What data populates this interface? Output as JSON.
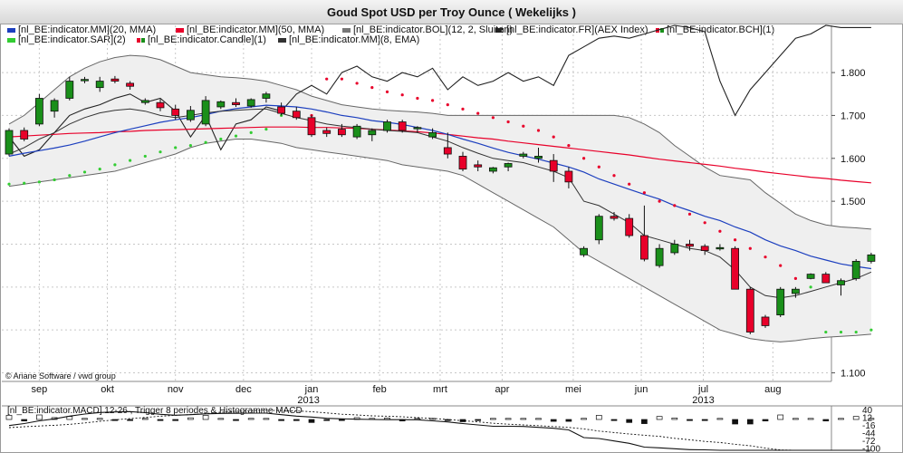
{
  "title": "Goud Spot USD per Troy Ounce  ( Wekelijks )",
  "legend": [
    {
      "label": "[nl_BE:indicator.MM](20, MMA)",
      "color": "#1c3fbf"
    },
    {
      "label": "[nl_BE:indicator.MM](50, MMA)",
      "color": "#e8002a"
    },
    {
      "label": "[nl_BE:indicator.BOL](12, 2, Sluiten)",
      "color": "#777777"
    },
    {
      "label": "[nl_BE:indicator.FR](AEX Index)",
      "color": "#222222"
    },
    {
      "label": "[nl_BE:indicator.BCH](1)",
      "color": "#e8002a",
      "color2": "#1a8f1a"
    },
    {
      "label": "[nl_BE:indicator.SAR](2)",
      "color": "#33cc33"
    },
    {
      "label": "[nl_BE:indicator.Candle](1)",
      "color": "#e8002a",
      "color2": "#1a8f1a"
    },
    {
      "label": "[nl_BE:indicator.MM](8, EMA)",
      "color": "#333333"
    }
  ],
  "copyright": "© Ariane Software / vwd group",
  "macd_label": "[nl_BE:indicator.MACD] 12-26 , Trigger 8 periodes & Histogramme MACD",
  "macd_ticks": [
    "40",
    "12",
    "-16",
    "-44",
    "-72",
    "-100"
  ],
  "colors": {
    "up": "#1a8f1a",
    "down": "#e8002a",
    "ma20": "#1c3fbf",
    "ma50": "#e8002a",
    "band": "#efefef",
    "sar": "#33cc33",
    "sar_above": "#e8002a"
  },
  "chart_data": {
    "type": "candlestick",
    "y_ticks": [
      1100,
      1200,
      1300,
      1400,
      1500,
      1600,
      1700,
      1800
    ],
    "y_tick_labels": [
      "1.100",
      "1.200",
      "1.300",
      "1.400",
      "1.500",
      "1.600",
      "1.700",
      "1.800"
    ],
    "ylim": [
      1080,
      1910
    ],
    "x_labels": [
      {
        "label": "sep",
        "index": 2
      },
      {
        "label": "okt",
        "index": 6.5
      },
      {
        "label": "nov",
        "index": 11
      },
      {
        "label": "dec",
        "index": 15.5
      },
      {
        "label": "jan",
        "index": 20
      },
      {
        "label": "feb",
        "index": 24.5
      },
      {
        "label": "mrt",
        "index": 28.5
      },
      {
        "label": "apr",
        "index": 32.6
      },
      {
        "label": "mei",
        "index": 37.3
      },
      {
        "label": "jun",
        "index": 41.8
      },
      {
        "label": "jul",
        "index": 45.9
      },
      {
        "label": "aug",
        "index": 50.5
      }
    ],
    "year_labels": [
      {
        "label": "2013",
        "index": 19.8
      },
      {
        "label": "2013",
        "index": 45.9
      }
    ],
    "candles": [
      {
        "o": 1610,
        "h": 1670,
        "l": 1605,
        "c": 1665
      },
      {
        "o": 1665,
        "h": 1672,
        "l": 1640,
        "c": 1645
      },
      {
        "o": 1680,
        "h": 1750,
        "l": 1675,
        "c": 1740
      },
      {
        "o": 1710,
        "h": 1740,
        "l": 1695,
        "c": 1735
      },
      {
        "o": 1740,
        "h": 1790,
        "l": 1735,
        "c": 1780
      },
      {
        "o": 1782,
        "h": 1790,
        "l": 1775,
        "c": 1784
      },
      {
        "o": 1765,
        "h": 1790,
        "l": 1755,
        "c": 1780
      },
      {
        "o": 1785,
        "h": 1792,
        "l": 1775,
        "c": 1780
      },
      {
        "o": 1775,
        "h": 1780,
        "l": 1760,
        "c": 1768
      },
      {
        "o": 1730,
        "h": 1740,
        "l": 1725,
        "c": 1735
      },
      {
        "o": 1730,
        "h": 1738,
        "l": 1710,
        "c": 1718
      },
      {
        "o": 1715,
        "h": 1725,
        "l": 1690,
        "c": 1700
      },
      {
        "o": 1690,
        "h": 1722,
        "l": 1685,
        "c": 1712
      },
      {
        "o": 1680,
        "h": 1745,
        "l": 1675,
        "c": 1735
      },
      {
        "o": 1720,
        "h": 1735,
        "l": 1715,
        "c": 1732
      },
      {
        "o": 1730,
        "h": 1740,
        "l": 1720,
        "c": 1725
      },
      {
        "o": 1722,
        "h": 1740,
        "l": 1718,
        "c": 1737
      },
      {
        "o": 1740,
        "h": 1755,
        "l": 1730,
        "c": 1750
      },
      {
        "o": 1720,
        "h": 1730,
        "l": 1700,
        "c": 1705
      },
      {
        "o": 1710,
        "h": 1720,
        "l": 1690,
        "c": 1695
      },
      {
        "o": 1695,
        "h": 1700,
        "l": 1650,
        "c": 1655
      },
      {
        "o": 1665,
        "h": 1672,
        "l": 1650,
        "c": 1658
      },
      {
        "o": 1668,
        "h": 1680,
        "l": 1650,
        "c": 1655
      },
      {
        "o": 1650,
        "h": 1680,
        "l": 1645,
        "c": 1675
      },
      {
        "o": 1655,
        "h": 1670,
        "l": 1640,
        "c": 1665
      },
      {
        "o": 1665,
        "h": 1690,
        "l": 1660,
        "c": 1685
      },
      {
        "o": 1685,
        "h": 1690,
        "l": 1660,
        "c": 1665
      },
      {
        "o": 1670,
        "h": 1675,
        "l": 1660,
        "c": 1672
      },
      {
        "o": 1650,
        "h": 1670,
        "l": 1645,
        "c": 1660
      },
      {
        "o": 1625,
        "h": 1660,
        "l": 1600,
        "c": 1610
      },
      {
        "o": 1605,
        "h": 1615,
        "l": 1570,
        "c": 1575
      },
      {
        "o": 1585,
        "h": 1595,
        "l": 1570,
        "c": 1580
      },
      {
        "o": 1570,
        "h": 1580,
        "l": 1565,
        "c": 1578
      },
      {
        "o": 1580,
        "h": 1590,
        "l": 1570,
        "c": 1588
      },
      {
        "o": 1605,
        "h": 1615,
        "l": 1600,
        "c": 1610
      },
      {
        "o": 1600,
        "h": 1625,
        "l": 1590,
        "c": 1605
      },
      {
        "o": 1595,
        "h": 1610,
        "l": 1545,
        "c": 1570
      },
      {
        "o": 1570,
        "h": 1580,
        "l": 1530,
        "c": 1545
      },
      {
        "o": 1375,
        "h": 1395,
        "l": 1370,
        "c": 1390
      },
      {
        "o": 1410,
        "h": 1470,
        "l": 1400,
        "c": 1465
      },
      {
        "o": 1465,
        "h": 1475,
        "l": 1455,
        "c": 1460
      },
      {
        "o": 1460,
        "h": 1470,
        "l": 1415,
        "c": 1420
      },
      {
        "o": 1420,
        "h": 1490,
        "l": 1360,
        "c": 1365
      },
      {
        "o": 1350,
        "h": 1400,
        "l": 1345,
        "c": 1390
      },
      {
        "o": 1380,
        "h": 1410,
        "l": 1375,
        "c": 1400
      },
      {
        "o": 1400,
        "h": 1410,
        "l": 1385,
        "c": 1395
      },
      {
        "o": 1395,
        "h": 1400,
        "l": 1375,
        "c": 1385
      },
      {
        "o": 1390,
        "h": 1400,
        "l": 1385,
        "c": 1392
      },
      {
        "o": 1390,
        "h": 1395,
        "l": 1295,
        "c": 1295
      },
      {
        "o": 1295,
        "h": 1300,
        "l": 1190,
        "c": 1195
      },
      {
        "o": 1230,
        "h": 1235,
        "l": 1205,
        "c": 1210
      },
      {
        "o": 1235,
        "h": 1300,
        "l": 1230,
        "c": 1295
      },
      {
        "o": 1285,
        "h": 1300,
        "l": 1275,
        "c": 1295
      },
      {
        "o": 1320,
        "h": 1332,
        "l": 1318,
        "c": 1330
      },
      {
        "o": 1330,
        "h": 1335,
        "l": 1310,
        "c": 1310
      },
      {
        "o": 1305,
        "h": 1320,
        "l": 1280,
        "c": 1315
      },
      {
        "o": 1320,
        "h": 1365,
        "l": 1315,
        "c": 1360
      },
      {
        "o": 1360,
        "h": 1380,
        "l": 1355,
        "c": 1375
      }
    ],
    "ma20": [
      1605,
      1612,
      1618,
      1624,
      1631,
      1640,
      1650,
      1660,
      1668,
      1676,
      1684,
      1690,
      1695,
      1702,
      1710,
      1716,
      1720,
      1724,
      1722,
      1720,
      1715,
      1708,
      1700,
      1695,
      1688,
      1684,
      1679,
      1672,
      1665,
      1656,
      1645,
      1635,
      1624,
      1614,
      1606,
      1598,
      1589,
      1580,
      1568,
      1552,
      1540,
      1528,
      1516,
      1505,
      1490,
      1478,
      1465,
      1455,
      1440,
      1428,
      1410,
      1396,
      1385,
      1372,
      1363,
      1354,
      1348,
      1343
    ],
    "ma50": [
      1650,
      1652,
      1654,
      1656,
      1658,
      1659,
      1660,
      1662,
      1663,
      1665,
      1666,
      1667,
      1668,
      1669,
      1670,
      1671,
      1672,
      1673,
      1673,
      1673,
      1672,
      1672,
      1671,
      1670,
      1668,
      1666,
      1664,
      1662,
      1659,
      1656,
      1652,
      1648,
      1645,
      1640,
      1636,
      1632,
      1628,
      1624,
      1620,
      1616,
      1612,
      1608,
      1603,
      1598,
      1594,
      1590,
      1586,
      1582,
      1577,
      1573,
      1568,
      1564,
      1560,
      1556,
      1553,
      1549,
      1546,
      1543
    ],
    "ema8": [
      1610,
      1625,
      1645,
      1660,
      1680,
      1695,
      1706,
      1712,
      1715,
      1710,
      1700,
      1695,
      1700,
      1706,
      1710,
      1712,
      1714,
      1715,
      1705,
      1695,
      1688,
      1680,
      1675,
      1672,
      1668,
      1665,
      1663,
      1660,
      1650,
      1640,
      1625,
      1612,
      1600,
      1595,
      1590,
      1580,
      1570,
      1555,
      1500,
      1490,
      1470,
      1450,
      1420,
      1410,
      1400,
      1390,
      1385,
      1370,
      1340,
      1300,
      1280,
      1275,
      1280,
      1290,
      1300,
      1310,
      1320,
      1335
    ],
    "boll_upper": [
      1680,
      1700,
      1730,
      1760,
      1790,
      1810,
      1825,
      1835,
      1840,
      1838,
      1830,
      1815,
      1800,
      1795,
      1790,
      1788,
      1785,
      1780,
      1770,
      1760,
      1745,
      1735,
      1725,
      1720,
      1715,
      1712,
      1710,
      1708,
      1705,
      1700,
      1700,
      1700,
      1700,
      1700,
      1700,
      1700,
      1700,
      1700,
      1700,
      1700,
      1700,
      1695,
      1680,
      1660,
      1630,
      1605,
      1580,
      1560,
      1555,
      1550,
      1520,
      1495,
      1470,
      1455,
      1445,
      1440,
      1438,
      1435
    ],
    "boll_lower": [
      1535,
      1540,
      1545,
      1550,
      1555,
      1560,
      1565,
      1570,
      1580,
      1590,
      1600,
      1610,
      1625,
      1635,
      1640,
      1645,
      1645,
      1640,
      1635,
      1625,
      1620,
      1615,
      1610,
      1605,
      1600,
      1595,
      1585,
      1580,
      1575,
      1570,
      1560,
      1540,
      1520,
      1500,
      1480,
      1460,
      1440,
      1410,
      1380,
      1360,
      1340,
      1320,
      1300,
      1280,
      1260,
      1240,
      1220,
      1200,
      1190,
      1180,
      1175,
      1172,
      1175,
      1180,
      1183,
      1185,
      1187,
      1190
    ],
    "sar": [
      1540,
      1542,
      1545,
      1550,
      1560,
      1568,
      1575,
      1585,
      1595,
      1605,
      1615,
      1625,
      1630,
      1637,
      1645,
      1652,
      1660,
      1668,
      1700,
      1700,
      1700,
      1785,
      1785,
      1775,
      1765,
      1755,
      1748,
      1740,
      1735,
      1725,
      1715,
      1705,
      1695,
      1685,
      1675,
      1665,
      1650,
      1630,
      1600,
      1580,
      1560,
      1540,
      1520,
      1500,
      1490,
      1470,
      1450,
      1430,
      1410,
      1390,
      1370,
      1350,
      1320,
      1300,
      1195,
      1195,
      1195,
      1200
    ],
    "aex_scaled": [
      1650,
      1605,
      1620,
      1660,
      1700,
      1715,
      1725,
      1740,
      1750,
      1730,
      1740,
      1710,
      1650,
      1700,
      1620,
      1680,
      1690,
      1720,
      1710,
      1750,
      1770,
      1750,
      1800,
      1815,
      1790,
      1780,
      1800,
      1790,
      1810,
      1760,
      1790,
      1770,
      1780,
      1800,
      1780,
      1790,
      1770,
      1840,
      1860,
      1880,
      1885,
      1880,
      1890,
      1900,
      1910,
      1905,
      1895,
      1780,
      1700,
      1760,
      1800,
      1840,
      1880,
      1890,
      1910,
      1905,
      1905,
      1905
    ]
  }
}
